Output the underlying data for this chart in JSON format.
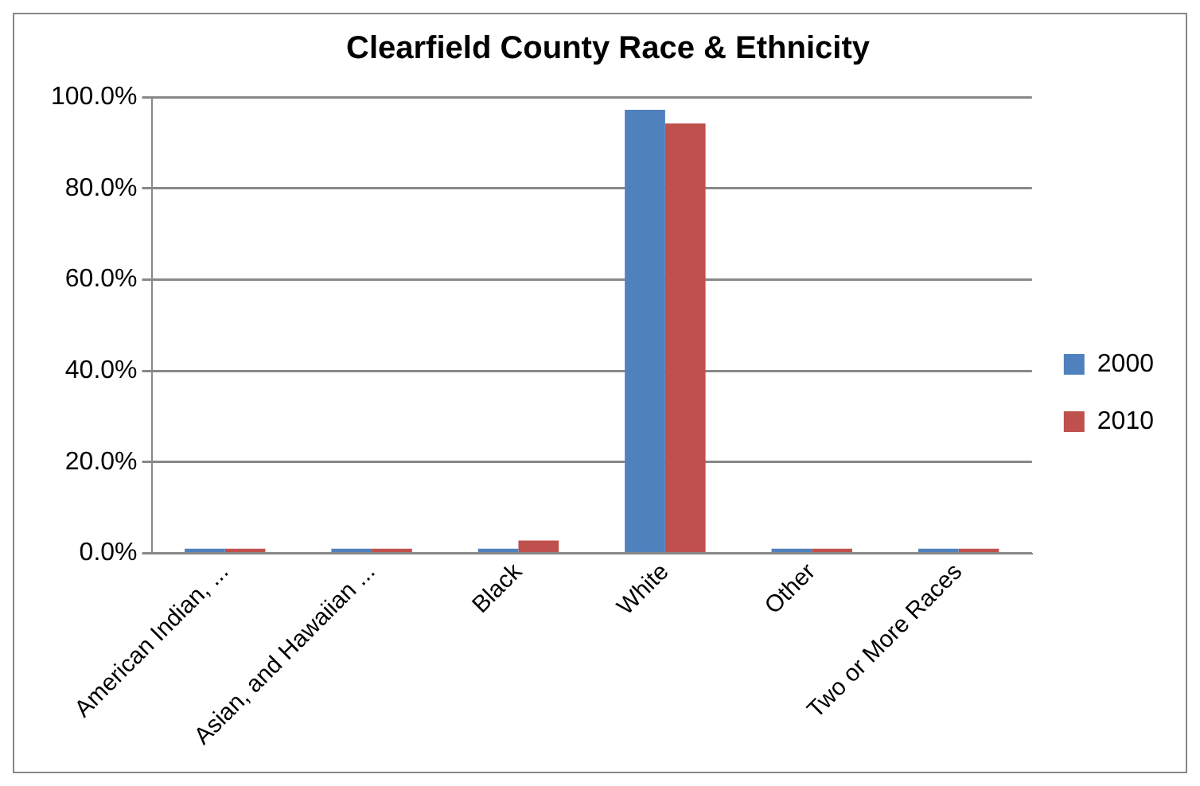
{
  "chart_data": {
    "type": "bar",
    "title": "Clearfield County Race & Ethnicity",
    "categories": [
      "American Indian, ...",
      "Asian, and Hawaiian ...",
      "Black",
      "White",
      "Other",
      "Two or More Races"
    ],
    "series": [
      {
        "name": "2000",
        "color": "#4f81bd",
        "values": [
          1.0,
          1.0,
          1.0,
          97.2,
          1.0,
          1.0
        ]
      },
      {
        "name": "2010",
        "color": "#c0504d",
        "values": [
          1.0,
          1.0,
          2.8,
          94.2,
          1.0,
          1.0
        ]
      }
    ],
    "ylim": [
      0,
      100
    ],
    "yticks": [
      {
        "value": 0,
        "label": "0.0%"
      },
      {
        "value": 20,
        "label": "20.0%"
      },
      {
        "value": 40,
        "label": "40.0%"
      },
      {
        "value": 60,
        "label": "60.0%"
      },
      {
        "value": 80,
        "label": "80.0%"
      },
      {
        "value": 100,
        "label": "100.0%"
      }
    ],
    "grid": "y",
    "legend": "right"
  }
}
